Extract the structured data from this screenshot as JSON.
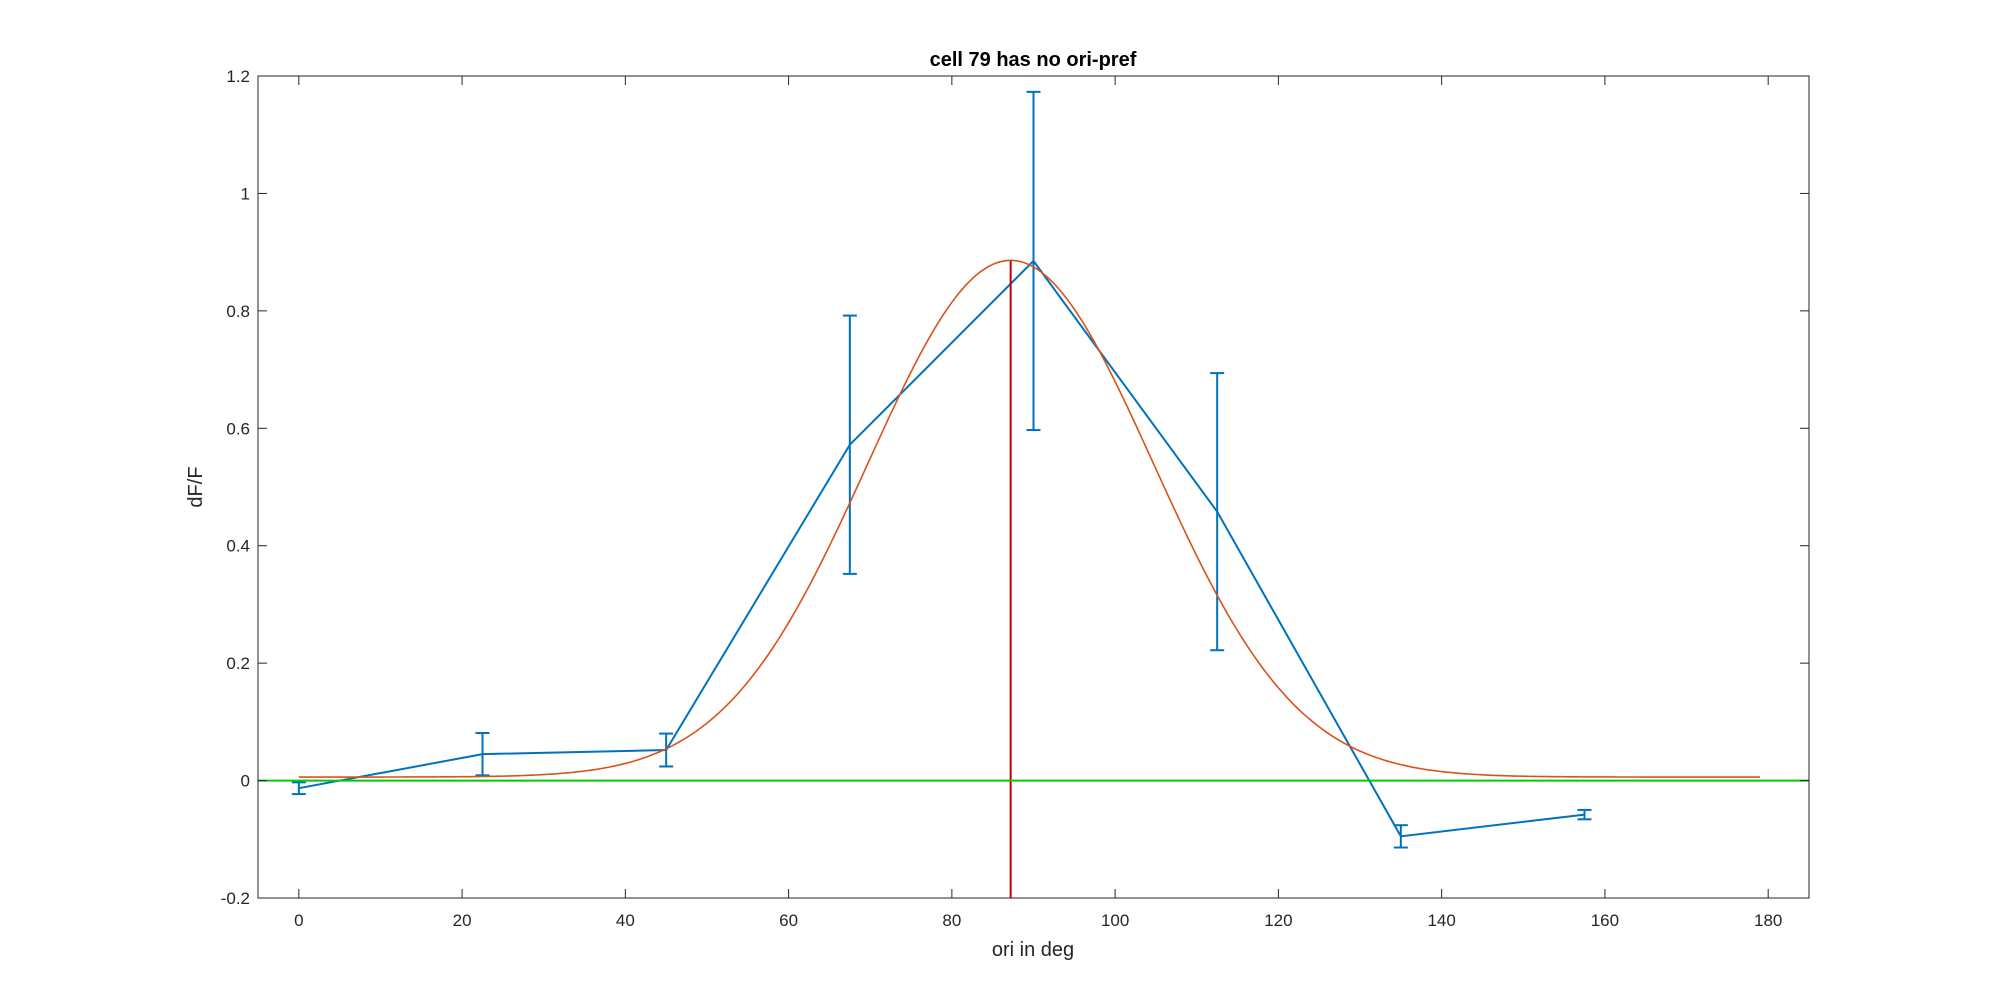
{
  "chart_data": {
    "type": "line",
    "title": "cell 79 has no ori-pref",
    "xlabel": "ori in deg",
    "ylabel": "dF/F",
    "xlim": [
      -5,
      185
    ],
    "ylim": [
      -0.2,
      1.2
    ],
    "xticks": [
      "0",
      "20",
      "40",
      "60",
      "80",
      "100",
      "120",
      "140",
      "160",
      "180"
    ],
    "yticks": [
      "-0.2",
      "0",
      "0.2",
      "0.4",
      "0.6",
      "0.8",
      "1",
      "1.2"
    ],
    "grid": false,
    "series": [
      {
        "kind": "errorbar",
        "color": "#0072BD",
        "x": [
          0,
          22.5,
          45,
          67.5,
          90,
          112.5,
          135,
          157.5
        ],
        "y": [
          -0.013,
          0.045,
          0.052,
          0.572,
          0.885,
          0.458,
          -0.095,
          -0.058
        ],
        "err": [
          0.01,
          0.036,
          0.028,
          0.22,
          0.288,
          0.236,
          0.019,
          0.008
        ]
      },
      {
        "kind": "fit",
        "color": "#D95319",
        "model": "gaussian",
        "x_range": [
          0,
          179
        ],
        "peak_x": 87.2,
        "amplitude": 0.88,
        "sigma": 17.5,
        "baseline": 0.006
      },
      {
        "kind": "vline",
        "color": "#C00000",
        "x": 87.2
      },
      {
        "kind": "hline",
        "color": "#00CC00",
        "y": 0
      }
    ]
  }
}
